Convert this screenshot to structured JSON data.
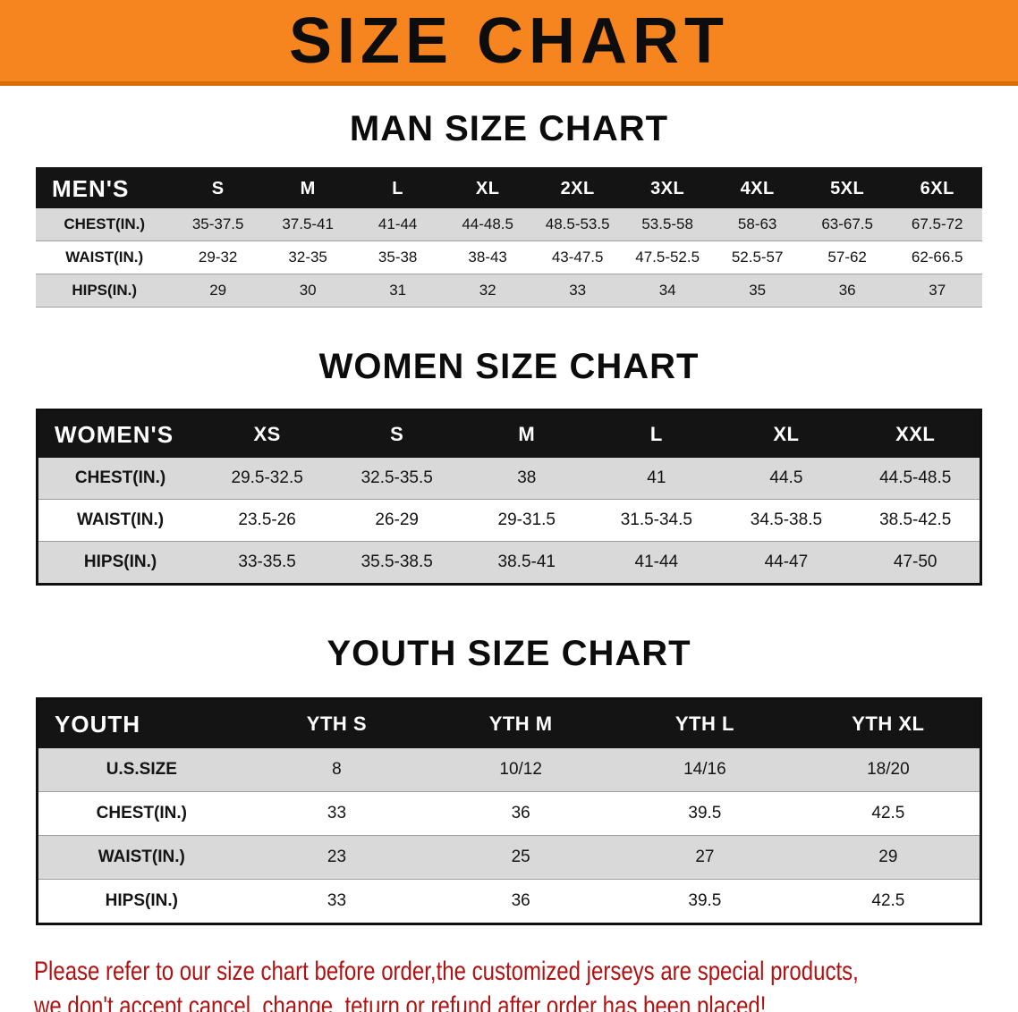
{
  "banner": {
    "title": "SIZE CHART",
    "bg_color": "#f6851f"
  },
  "sections": [
    {
      "id": "men",
      "heading": "MAN SIZE CHART",
      "header": [
        "MEN'S",
        "S",
        "M",
        "L",
        "XL",
        "2XL",
        "3XL",
        "4XL",
        "5XL",
        "6XL"
      ],
      "rows": [
        [
          "CHEST(IN.)",
          "35-37.5",
          "37.5-41",
          "41-44",
          "44-48.5",
          "48.5-53.5",
          "53.5-58",
          "58-63",
          "63-67.5",
          "67.5-72"
        ],
        [
          "WAIST(IN.)",
          "29-32",
          "32-35",
          "35-38",
          "38-43",
          "43-47.5",
          "47.5-52.5",
          "52.5-57",
          "57-62",
          "62-66.5"
        ],
        [
          "HIPS(IN.)",
          "29",
          "30",
          "31",
          "32",
          "33",
          "34",
          "35",
          "36",
          "37"
        ]
      ]
    },
    {
      "id": "women",
      "heading": "WOMEN SIZE CHART",
      "header": [
        "WOMEN'S",
        "XS",
        "S",
        "M",
        "L",
        "XL",
        "XXL"
      ],
      "rows": [
        [
          "CHEST(IN.)",
          "29.5-32.5",
          "32.5-35.5",
          "38",
          "41",
          "44.5",
          "44.5-48.5"
        ],
        [
          "WAIST(IN.)",
          "23.5-26",
          "26-29",
          "29-31.5",
          "31.5-34.5",
          "34.5-38.5",
          "38.5-42.5"
        ],
        [
          "HIPS(IN.)",
          "33-35.5",
          "35.5-38.5",
          "38.5-41",
          "41-44",
          "44-47",
          "47-50"
        ]
      ]
    },
    {
      "id": "youth",
      "heading": "YOUTH SIZE CHART",
      "header": [
        "YOUTH",
        "YTH S",
        "YTH M",
        "YTH L",
        "YTH XL"
      ],
      "rows": [
        [
          "U.S.SIZE",
          "8",
          "10/12",
          "14/16",
          "18/20"
        ],
        [
          "CHEST(IN.)",
          "33",
          "36",
          "39.5",
          "42.5"
        ],
        [
          "WAIST(IN.)",
          "23",
          "25",
          "27",
          "29"
        ],
        [
          "HIPS(IN.)",
          "33",
          "36",
          "39.5",
          "42.5"
        ]
      ]
    }
  ],
  "footer": {
    "line1": "Please refer to our size chart before order,the customized jerseys are special products,",
    "line2": "we don't accept cancel, change, teturn or refund after order has been placed!",
    "text_color": "#b01212"
  }
}
